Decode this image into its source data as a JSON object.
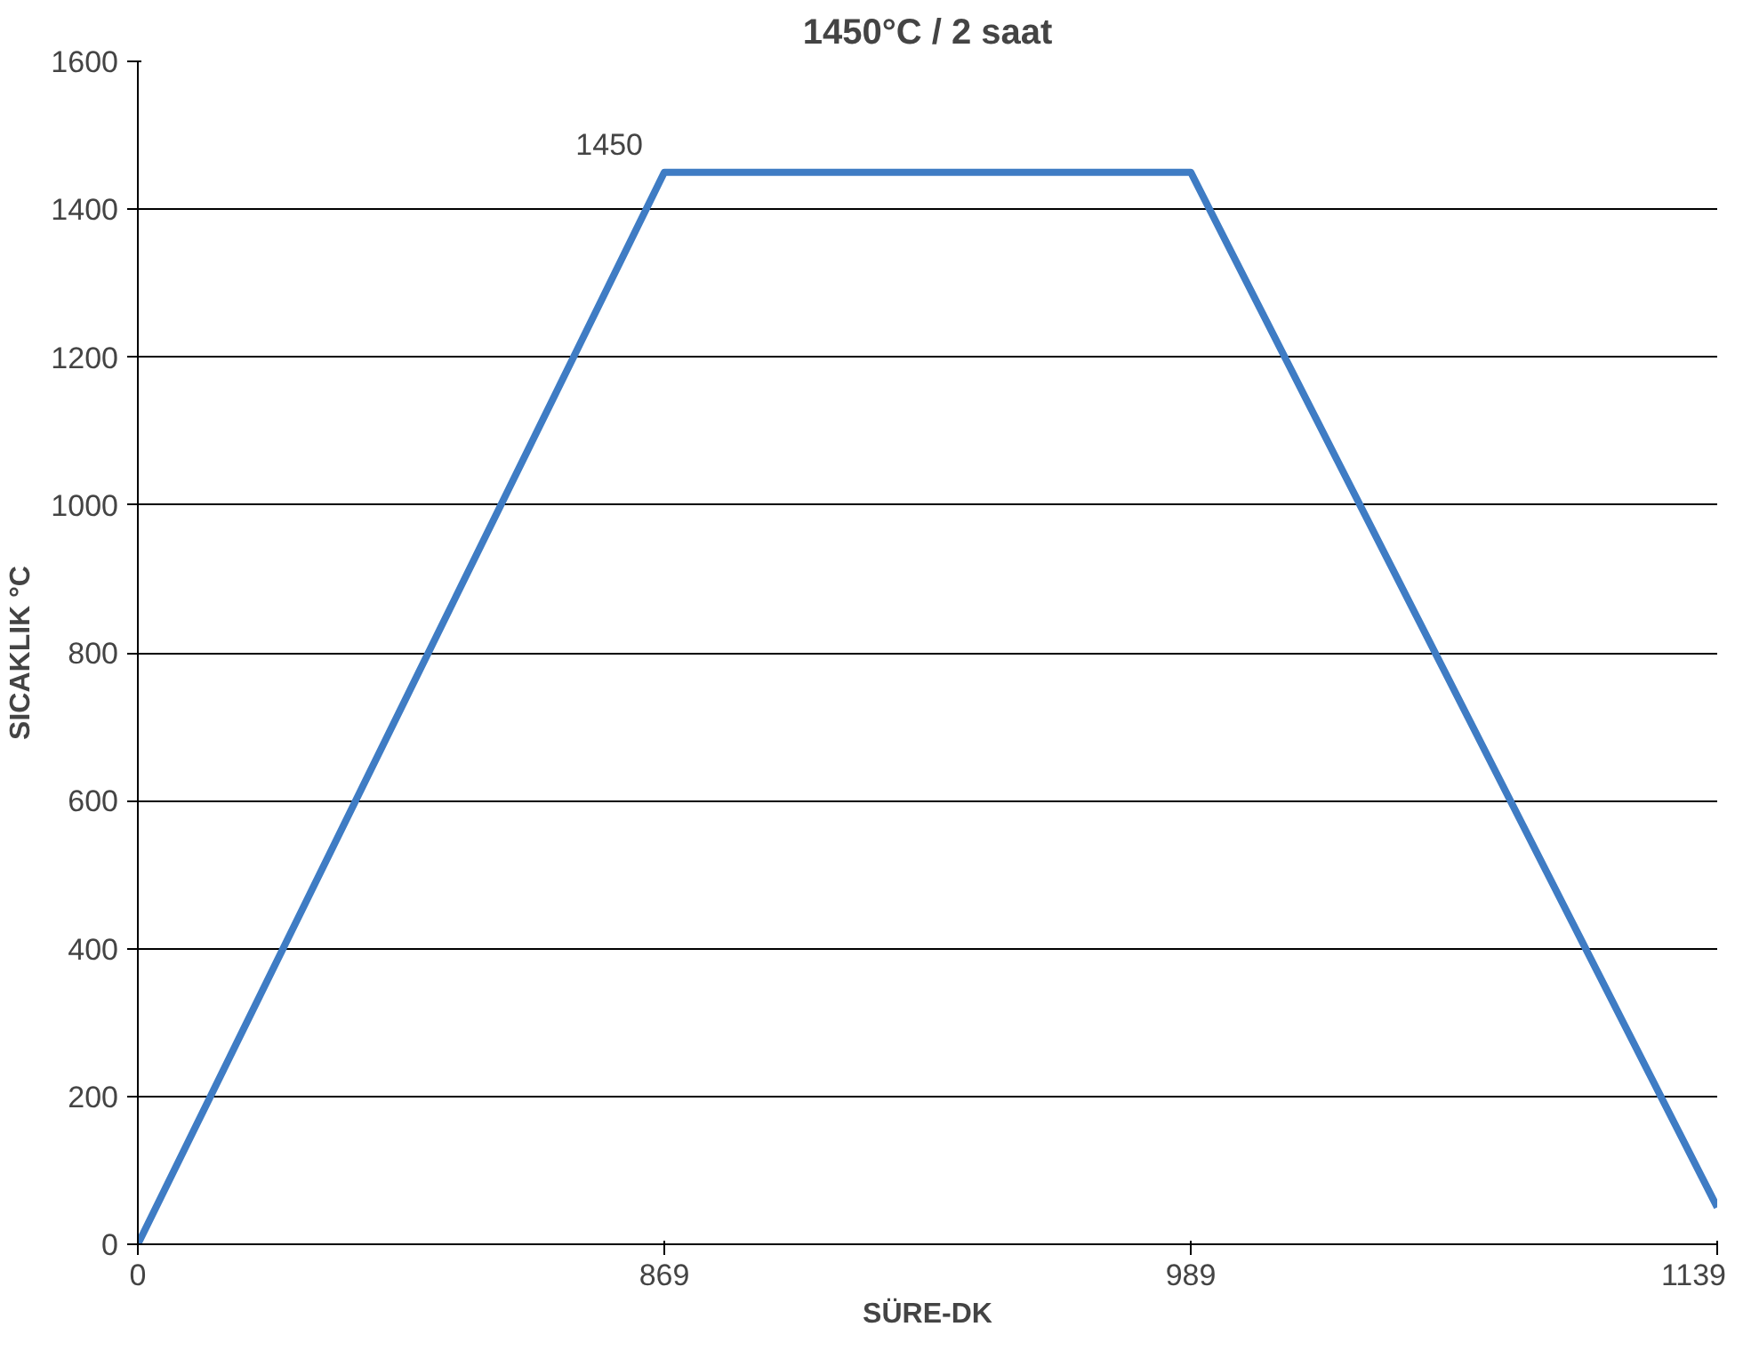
{
  "chart_data": {
    "type": "line",
    "title": "1450°C / 2 saat",
    "xlabel": "SÜRE-DK",
    "ylabel": "SICAKLIK °C",
    "categories": [
      "0",
      "869",
      "989",
      "1139"
    ],
    "series": [
      {
        "color": "#3f7cc4",
        "values": [
          0,
          1450,
          1450,
          50
        ],
        "value_labels": [
          null,
          "1450",
          null,
          null
        ]
      }
    ],
    "ylim": [
      0,
      1600
    ],
    "yticks": [
      0,
      200,
      400,
      600,
      800,
      1000,
      1200,
      1400,
      1600
    ],
    "grid": "y",
    "marker": "none",
    "line_style": "solid"
  }
}
